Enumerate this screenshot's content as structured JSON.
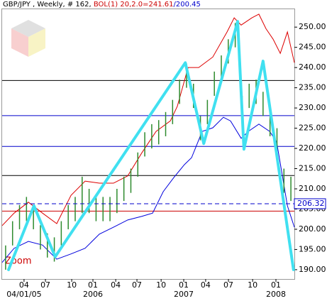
{
  "chart_data": {
    "type": "ohlc",
    "title": {
      "symbol": "GBP/JPY , Weekly, # 162, ",
      "indicator": "BOL(1) 20,2.0=241.61",
      "indicator2": "/200.45"
    },
    "annotation": "Zoom",
    "xlim": [
      0,
      168
    ],
    "ylim": [
      187.7,
      254.6
    ],
    "yticks": [
      {
        "value": 190,
        "label": "190.00"
      },
      {
        "value": 195,
        "label": "195.00"
      },
      {
        "value": 200,
        "label": "200.00"
      },
      {
        "value": 205,
        "label": "205.00"
      },
      {
        "value": 210,
        "label": "210.00"
      },
      {
        "value": 215,
        "label": "215.00"
      },
      {
        "value": 220,
        "label": "220.00"
      },
      {
        "value": 225,
        "label": "225.00"
      },
      {
        "value": 230,
        "label": "230.00"
      },
      {
        "value": 235,
        "label": "235.00"
      },
      {
        "value": 240,
        "label": "240.00"
      },
      {
        "value": 245,
        "label": "245.00"
      },
      {
        "value": 250,
        "label": "250.00"
      }
    ],
    "xticks": [
      {
        "value": 12.6,
        "label": "04"
      },
      {
        "value": 24.9,
        "label": "07"
      },
      {
        "value": 40.0,
        "label": "10"
      },
      {
        "value": 52.2,
        "label": "01"
      },
      {
        "value": 65.3,
        "label": "04"
      },
      {
        "value": 77.5,
        "label": "07"
      },
      {
        "value": 91.4,
        "label": "10"
      },
      {
        "value": 104.4,
        "label": "01"
      },
      {
        "value": 117.0,
        "label": "04"
      },
      {
        "value": 130.1,
        "label": "07"
      },
      {
        "value": 144.0,
        "label": "10"
      },
      {
        "value": 157.4,
        "label": "01"
      }
    ],
    "xsubticks": [
      {
        "value": 12.6,
        "label": "04/01/05"
      },
      {
        "value": 52.2,
        "label": "2006"
      },
      {
        "value": 104.4,
        "label": "2007"
      },
      {
        "value": 157.4,
        "label": "2008"
      }
    ],
    "bars": {
      "color": "#2e8b2e",
      "x": [
        2,
        6,
        10,
        14,
        18,
        22,
        26,
        30,
        34,
        38,
        42,
        46,
        50,
        54,
        58,
        62,
        66,
        70,
        74,
        78,
        82,
        86,
        90,
        94,
        98,
        102,
        106,
        110,
        114,
        118,
        122,
        126,
        130,
        134,
        138,
        142,
        146,
        150,
        154,
        158,
        162,
        166
      ],
      "high": [
        196,
        202,
        206,
        208,
        206,
        201,
        199,
        198,
        202,
        206,
        208,
        213,
        210,
        208,
        208,
        208,
        210,
        213,
        215,
        219,
        224,
        226,
        227,
        229,
        232,
        237,
        241,
        236,
        228,
        232,
        239,
        243,
        247,
        251,
        233,
        236,
        237,
        234,
        229,
        225,
        215,
        213
      ],
      "low": [
        190,
        196,
        200,
        202,
        200,
        195,
        193,
        192,
        196,
        200,
        202,
        204,
        204,
        202,
        202,
        202,
        204,
        207,
        209,
        213,
        218,
        220,
        221,
        223,
        226,
        231,
        235,
        230,
        222,
        226,
        233,
        237,
        241,
        245,
        227,
        230,
        231,
        228,
        223,
        219,
        209,
        207
      ]
    },
    "bands": [
      {
        "color": "#dd0000",
        "x": [
          0,
          6.9,
          15.1,
          23.2,
          31.4,
          39.6,
          47.7,
          55.9,
          64.0,
          72.2,
          80.3,
          88.5,
          96.7,
          100.7,
          106.9,
          113.0,
          121.1,
          129.3,
          133.4,
          137.4,
          143.6,
          147.6,
          151.7,
          155.8,
          159.9,
          164.0,
          168
        ],
        "values": [
          200.9,
          204.0,
          206.7,
          204.0,
          201.4,
          208.4,
          211.9,
          211.4,
          211.4,
          213.2,
          218.9,
          224.2,
          226.8,
          230.4,
          240.0,
          240.0,
          242.6,
          248.8,
          252.3,
          250.5,
          252.3,
          253.2,
          249.6,
          247.0,
          243.5,
          248.8,
          241.2
        ]
      },
      {
        "color": "#0000dd",
        "x": [
          0,
          6.9,
          15.1,
          23.2,
          31.4,
          39.6,
          47.7,
          55.9,
          64.0,
          72.2,
          80.3,
          86.5,
          92.6,
          98.7,
          104.8,
          108.9,
          115.0,
          121.1,
          127.2,
          131.3,
          137.4,
          141.5,
          147.6,
          153.8,
          157.8,
          159.9,
          164.0,
          168
        ],
        "values": [
          191.8,
          195.3,
          197.0,
          196.1,
          192.6,
          193.9,
          195.3,
          198.8,
          200.5,
          202.3,
          203.2,
          204.0,
          209.3,
          212.8,
          216.0,
          217.7,
          224.2,
          225.1,
          227.7,
          226.8,
          222.5,
          224.2,
          226.0,
          224.2,
          221.6,
          216.3,
          205.8,
          200.5
        ]
      }
    ],
    "zigzag": {
      "color": "#40e0f0",
      "x": [
        3.7,
        18.3,
        30.5,
        105.3,
        115.9,
        135.4,
        139.0,
        150.0,
        167.5
      ],
      "values": [
        190.0,
        205.8,
        193.2,
        241.2,
        221.2,
        251.4,
        219.8,
        241.6,
        190.0
      ]
    },
    "levels": [
      {
        "value": 236.8,
        "color": "#000000"
      },
      {
        "value": 228.1,
        "color": "#0000cc"
      },
      {
        "value": 220.5,
        "color": "#0000cc"
      },
      {
        "value": 213.3,
        "color": "#000000"
      },
      {
        "value": 204.5,
        "color": "#cc0000"
      }
    ],
    "price_line": {
      "value": 206.32,
      "color": "#0000cc"
    }
  }
}
